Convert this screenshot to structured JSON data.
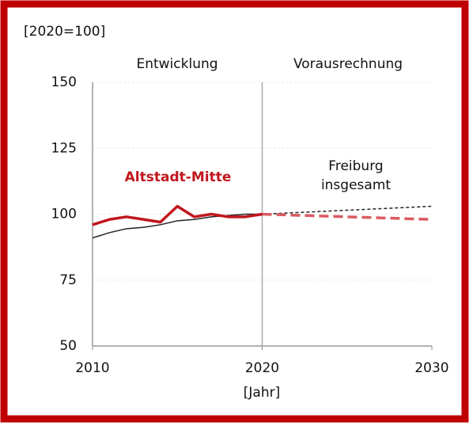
{
  "chart_data": {
    "type": "line",
    "unit_label": "[2020=100]",
    "x_label": "[Jahr]",
    "annotations": [
      "Entwicklung",
      "Vorausrechnung"
    ],
    "divider_x": 2020,
    "xlim": [
      2010,
      2030
    ],
    "xticks": [
      2010,
      2020,
      2030
    ],
    "ylim": [
      50,
      150
    ],
    "yticks": [
      50,
      75,
      100,
      125,
      150
    ],
    "grid": true,
    "series": [
      {
        "name": "Freiburg insgesamt",
        "color": "#222222",
        "width": 1.5,
        "dashed": false,
        "x": [
          2010,
          2011,
          2012,
          2013,
          2014,
          2015,
          2016,
          2017,
          2018,
          2019,
          2020
        ],
        "values": [
          91,
          93,
          94.5,
          95,
          96,
          97.5,
          98,
          99,
          99.5,
          100,
          100
        ]
      },
      {
        "color": "#222222",
        "width": 1.5,
        "dashed": true,
        "x": [
          2020,
          2030
        ],
        "values": [
          100,
          103
        ]
      },
      {
        "name": "Altstadt-Mitte",
        "color": "#c0161d",
        "width": 3.5,
        "dashed": false,
        "x": [
          2010,
          2011,
          2012,
          2013,
          2014,
          2015,
          2016,
          2017,
          2018,
          2019,
          2020
        ],
        "values": [
          96,
          98,
          99,
          98,
          97,
          103,
          99,
          100,
          99,
          99,
          100
        ]
      },
      {
        "color": "#d95a60",
        "width": 3.5,
        "dashed": true,
        "x": [
          2020,
          2030
        ],
        "values": [
          100,
          98
        ]
      }
    ]
  }
}
